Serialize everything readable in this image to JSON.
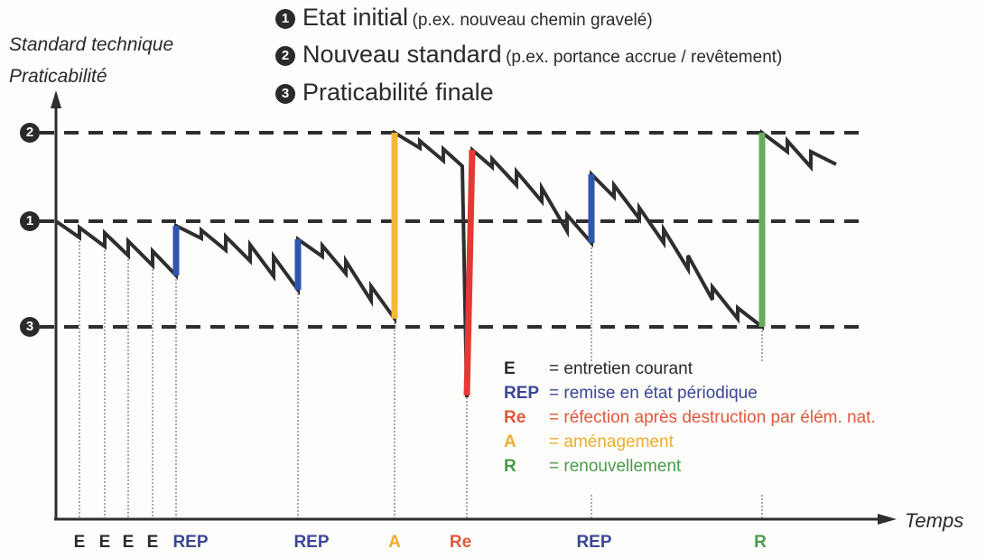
{
  "axis": {
    "y_label_line1": "Standard technique",
    "y_label_line2": "Praticabilité",
    "x_label": "Temps"
  },
  "levels": [
    {
      "num": "1",
      "title": "Etat initial",
      "note": "(p.ex. nouveau chemin gravelé)"
    },
    {
      "num": "2",
      "title": "Nouveau standard",
      "note": "(p.ex. portance accrue / revêtement)"
    },
    {
      "num": "3",
      "title": "Praticabilité finale",
      "note": ""
    }
  ],
  "legend": [
    {
      "key": "E",
      "text": "= entretien courant",
      "color": "#2a2a2a"
    },
    {
      "key": "REP",
      "text": "= remise en état périodique",
      "color": "#3b4796"
    },
    {
      "key": "Re",
      "text": "= réfection après destruction par élém. nat.",
      "color": "#e0583c"
    },
    {
      "key": "A",
      "text": "= aménagement",
      "color": "#eeac2c"
    },
    {
      "key": "R",
      "text": "= renouvellement",
      "color": "#4c9a48"
    }
  ],
  "events": [
    "E",
    "E",
    "E",
    "E",
    "REP",
    "REP",
    "A",
    "Re",
    "REP",
    "R"
  ],
  "colors": {
    "REP": "#3055b0",
    "A": "#f2b936",
    "Re": "#e33a36",
    "R": "#6aaa5a",
    "line": "#2e2e2e"
  }
}
